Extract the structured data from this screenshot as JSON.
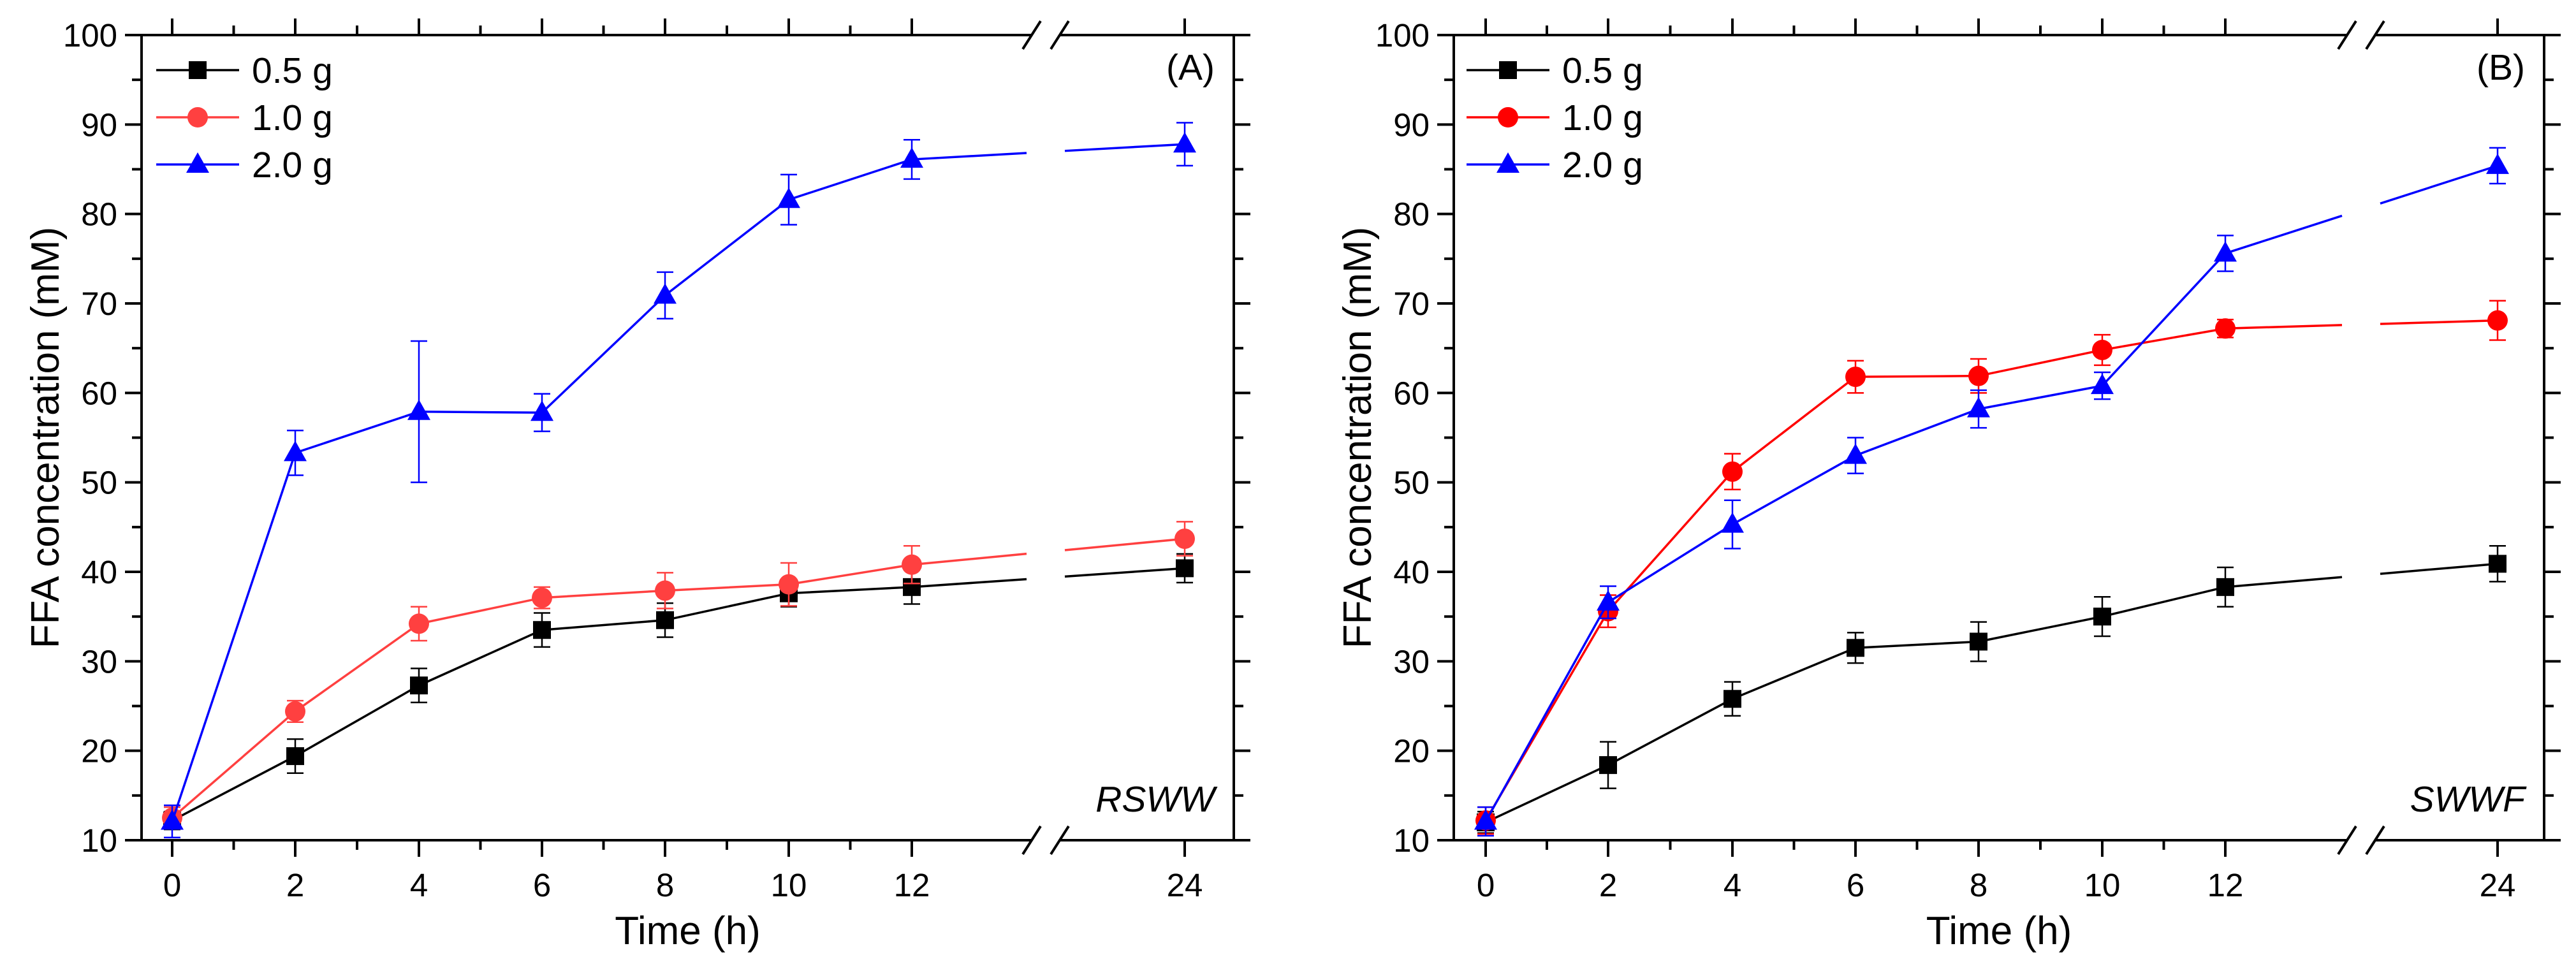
{
  "chart_data": [
    {
      "type": "line",
      "panel_label": "(A)",
      "sample_label": "RSWW",
      "xlabel": "Time (h)",
      "ylabel": "FFA concentration (mM)",
      "ylim": [
        10,
        100
      ],
      "yticks": [
        10,
        20,
        30,
        40,
        50,
        60,
        70,
        80,
        90,
        100
      ],
      "x": [
        0,
        2,
        4,
        6,
        8,
        10,
        12,
        24
      ],
      "x_tick_labels": [
        "0",
        "2",
        "4",
        "6",
        "8",
        "10",
        "12",
        "24"
      ],
      "axis_break": "between 12 and 24",
      "legend_position": "top-left",
      "series": [
        {
          "name": "0.5 g",
          "color": "#000000",
          "marker": "square",
          "values": [
            12.2,
            19.4,
            27.3,
            33.5,
            34.6,
            37.6,
            38.3,
            40.4
          ],
          "errors": [
            1.0,
            1.9,
            1.9,
            1.9,
            1.9,
            1.5,
            1.9,
            1.6
          ]
        },
        {
          "name": "1.0 g",
          "color": "#ff4040",
          "marker": "circle",
          "values": [
            12.5,
            24.4,
            34.2,
            37.1,
            37.9,
            38.6,
            40.8,
            43.7
          ],
          "errors": [
            1.2,
            1.2,
            1.9,
            1.2,
            2.0,
            2.4,
            2.1,
            1.9
          ]
        },
        {
          "name": "2.0 g",
          "color": "#0000ff",
          "marker": "triangle",
          "values": [
            12.1,
            53.3,
            57.9,
            57.8,
            70.9,
            81.6,
            86.1,
            87.8
          ],
          "errors": [
            1.8,
            2.5,
            7.9,
            2.1,
            2.6,
            2.8,
            2.2,
            2.4
          ]
        }
      ]
    },
    {
      "type": "line",
      "panel_label": "(B)",
      "sample_label": "SWWF",
      "xlabel": "Time (h)",
      "ylabel": "FFA concentration (mM)",
      "ylim": [
        10,
        100
      ],
      "yticks": [
        10,
        20,
        30,
        40,
        50,
        60,
        70,
        80,
        90,
        100
      ],
      "x": [
        0,
        2,
        4,
        6,
        8,
        10,
        12,
        24
      ],
      "x_tick_labels": [
        "0",
        "2",
        "4",
        "6",
        "8",
        "10",
        "12",
        "24"
      ],
      "axis_break": "between 12 and 24",
      "legend_position": "top-left",
      "series": [
        {
          "name": "0.5 g",
          "color": "#000000",
          "marker": "square",
          "values": [
            12.0,
            18.4,
            25.8,
            31.5,
            32.2,
            35.0,
            38.3,
            40.9
          ],
          "errors": [
            1.2,
            2.6,
            1.9,
            1.7,
            2.2,
            2.2,
            2.2,
            2.0
          ]
        },
        {
          "name": "1.0 g",
          "color": "#ff0000",
          "marker": "circle",
          "values": [
            12.2,
            35.6,
            51.2,
            61.8,
            61.9,
            64.8,
            67.2,
            68.1
          ],
          "errors": [
            1.5,
            1.8,
            2.0,
            1.8,
            1.9,
            1.7,
            1.0,
            2.2
          ]
        },
        {
          "name": "2.0 g",
          "color": "#0000ff",
          "marker": "triangle",
          "values": [
            12.1,
            36.6,
            45.3,
            53.0,
            58.2,
            60.8,
            75.6,
            85.4
          ],
          "errors": [
            1.6,
            1.8,
            2.7,
            2.0,
            2.1,
            1.5,
            2.0,
            2.0
          ]
        }
      ]
    }
  ]
}
